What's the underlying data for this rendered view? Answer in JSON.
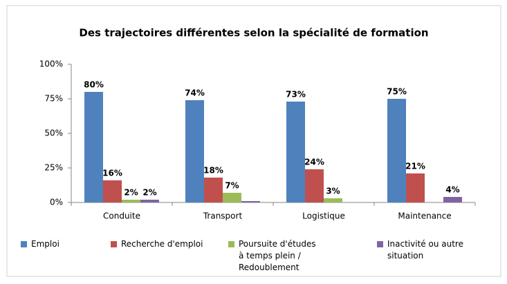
{
  "chart_data": {
    "type": "bar",
    "title": "Des trajectoires différentes selon la spécialité de formation",
    "categories": [
      "Conduite",
      "Transport",
      "Logistique",
      "Maintenance"
    ],
    "series": [
      {
        "name": "Emploi",
        "color": "#4f81bd",
        "values": [
          80,
          74,
          73,
          75
        ],
        "value_labels": [
          "80%",
          "74%",
          "73%",
          "75%"
        ]
      },
      {
        "name": "Recherche d'emploi",
        "color": "#c0504d",
        "values": [
          16,
          18,
          24,
          21
        ],
        "value_labels": [
          "16%",
          "18%",
          "24%",
          "21%"
        ]
      },
      {
        "name": "Poursuite d'études à temps plein / Redoublement",
        "color": "#9bbb59",
        "values": [
          2,
          7,
          3,
          null
        ],
        "value_labels": [
          "2%",
          "7%",
          "3%",
          null
        ]
      },
      {
        "name": "Inactivité ou autre situation",
        "color": "#8064a2",
        "values": [
          2,
          1,
          null,
          4
        ],
        "value_labels": [
          "2%",
          null,
          null,
          "4%"
        ]
      }
    ],
    "ylim": [
      0,
      100
    ],
    "yticks": [
      {
        "value": 0,
        "label": "0%"
      },
      {
        "value": 25,
        "label": "25%"
      },
      {
        "value": 50,
        "label": "50%"
      },
      {
        "value": 75,
        "label": "75%"
      },
      {
        "value": 100,
        "label": "100%"
      }
    ],
    "grid": false,
    "legend": "bottom"
  }
}
